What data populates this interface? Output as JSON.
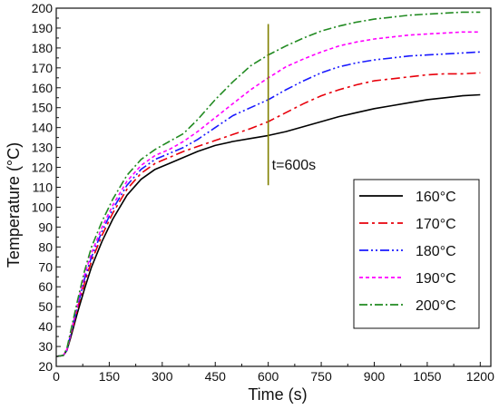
{
  "chart_data": {
    "type": "line",
    "title": "",
    "xlabel": "Time (s)",
    "ylabel": "Temperature (°C)",
    "xlim": [
      0,
      1230
    ],
    "ylim": [
      20,
      200
    ],
    "x_ticks": [
      0,
      150,
      300,
      450,
      600,
      750,
      900,
      1050,
      1200
    ],
    "x_tick_labels": [
      "0",
      "150",
      "300",
      "450",
      "600",
      "750",
      "900",
      "1050",
      "1200"
    ],
    "y_ticks": [
      20,
      30,
      40,
      50,
      60,
      70,
      80,
      90,
      100,
      110,
      120,
      130,
      140,
      150,
      160,
      170,
      180,
      190,
      200
    ],
    "y_tick_labels": [
      "20",
      "30",
      "40",
      "50",
      "60",
      "70",
      "80",
      "90",
      "100",
      "110",
      "120",
      "130",
      "140",
      "150",
      "160",
      "170",
      "180",
      "190",
      "200"
    ],
    "grid": false,
    "legend_position": "lower-right",
    "annotation": {
      "text": "t=600s",
      "x": 600,
      "y_range": [
        111,
        192
      ],
      "color": "#808000"
    },
    "series": [
      {
        "name": "160°C",
        "color": "#000000",
        "dash": "solid",
        "x": [
          0,
          20,
          30,
          40,
          60,
          80,
          100,
          130,
          160,
          200,
          240,
          280,
          320,
          360,
          400,
          450,
          500,
          550,
          600,
          650,
          700,
          750,
          800,
          850,
          900,
          950,
          1000,
          1050,
          1100,
          1150,
          1200
        ],
        "y": [
          25,
          25.5,
          28,
          34,
          47,
          59,
          70,
          83,
          94,
          106,
          114,
          119,
          122,
          125,
          128,
          131,
          133,
          134.5,
          136,
          138,
          140.5,
          143,
          145.5,
          147.5,
          149.5,
          151,
          152.5,
          154,
          155,
          156,
          156.5
        ]
      },
      {
        "name": "170°C",
        "color": "#e8000b",
        "dash": "10 4 3 4",
        "x": [
          0,
          20,
          30,
          40,
          60,
          80,
          100,
          130,
          160,
          200,
          240,
          280,
          320,
          360,
          400,
          450,
          500,
          550,
          600,
          650,
          700,
          750,
          800,
          850,
          900,
          950,
          1000,
          1050,
          1100,
          1150,
          1200
        ],
        "y": [
          25,
          25.5,
          28,
          35,
          49,
          62,
          73,
          86,
          97,
          109,
          117,
          122,
          125,
          128,
          130.5,
          133.5,
          136.5,
          139.5,
          143,
          147.5,
          152,
          156,
          159,
          161.5,
          163.5,
          164.5,
          165.5,
          166.5,
          167,
          167,
          167.5
        ]
      },
      {
        "name": "180°C",
        "color": "#1a1aff",
        "dash": "10 3 2 3 2 3",
        "x": [
          0,
          20,
          30,
          40,
          60,
          80,
          100,
          130,
          160,
          200,
          240,
          280,
          320,
          360,
          400,
          450,
          500,
          550,
          600,
          650,
          700,
          750,
          800,
          850,
          900,
          950,
          1000,
          1050,
          1100,
          1150,
          1200
        ],
        "y": [
          25,
          25.5,
          28,
          35.5,
          50,
          64,
          75,
          88,
          99,
          111,
          119,
          124,
          127,
          130,
          134,
          140,
          146,
          150,
          154,
          159,
          163.5,
          167.5,
          170.5,
          172.5,
          174,
          175,
          176,
          176.5,
          177,
          177.5,
          178
        ]
      },
      {
        "name": "190°C",
        "color": "#ff00ff",
        "dash": "4 3",
        "x": [
          0,
          20,
          30,
          40,
          60,
          80,
          100,
          130,
          160,
          200,
          240,
          280,
          320,
          360,
          400,
          450,
          500,
          550,
          600,
          650,
          700,
          750,
          800,
          850,
          900,
          950,
          1000,
          1050,
          1100,
          1150,
          1200
        ],
        "y": [
          25,
          25.5,
          28.5,
          36,
          51,
          66,
          77,
          90,
          101,
          113,
          121,
          126,
          129,
          133,
          138,
          145,
          152,
          159,
          165,
          170.5,
          174.5,
          178,
          181,
          183,
          184.5,
          185.5,
          186.5,
          187,
          187.5,
          188,
          188
        ]
      },
      {
        "name": "200°C",
        "color": "#228b22",
        "dash": "9 3 2 3",
        "x": [
          0,
          20,
          30,
          40,
          60,
          80,
          100,
          130,
          160,
          200,
          240,
          280,
          320,
          360,
          400,
          450,
          500,
          550,
          600,
          650,
          700,
          750,
          800,
          850,
          900,
          950,
          1000,
          1050,
          1100,
          1150,
          1200
        ],
        "y": [
          25,
          25.5,
          29,
          37,
          53,
          68,
          80,
          93,
          104,
          116,
          124,
          129,
          133,
          137,
          144,
          154,
          163,
          171,
          176.5,
          181,
          185,
          188.5,
          191,
          193,
          194.5,
          195.5,
          196.5,
          197,
          197.5,
          198,
          198
        ]
      }
    ]
  }
}
